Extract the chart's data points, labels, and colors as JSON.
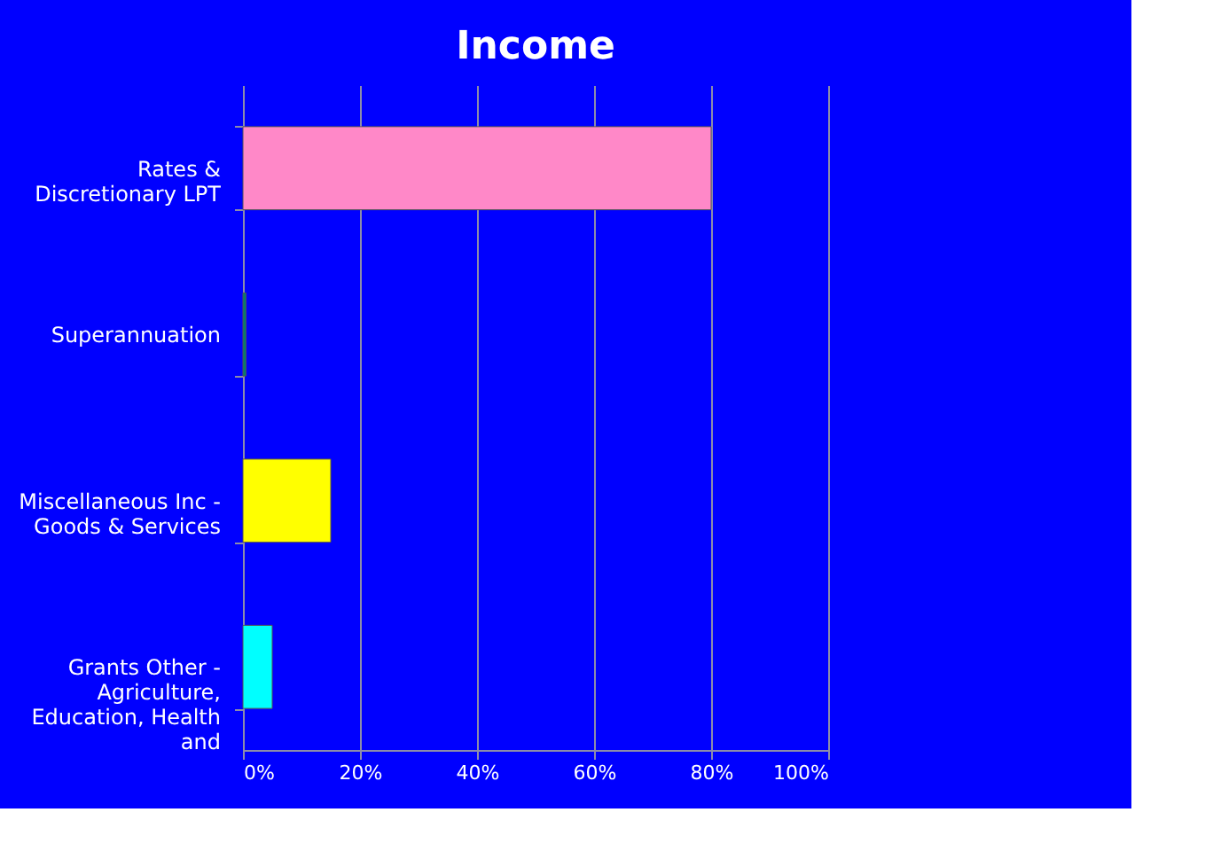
{
  "chart_data": {
    "type": "bar",
    "orientation": "horizontal",
    "title": "Income",
    "categories": [
      "Rates & Discretionary LPT",
      "Superannuation",
      "Miscellaneous Inc - Goods & Services",
      "Grants Other - Agriculture, Education, Health and"
    ],
    "values": [
      80,
      0.5,
      15,
      5
    ],
    "colors": [
      "#ff88c8",
      "#00806e",
      "#ffff00",
      "#00ffff"
    ],
    "xlim": [
      0,
      100
    ],
    "xticks": [
      {
        "value": 0,
        "label": "0%"
      },
      {
        "value": 20,
        "label": "20%"
      },
      {
        "value": 40,
        "label": "40%"
      },
      {
        "value": 60,
        "label": "60%"
      },
      {
        "value": 80,
        "label": "80%"
      },
      {
        "value": 100,
        "label": "100%"
      }
    ],
    "grid": "x",
    "legend": false
  }
}
